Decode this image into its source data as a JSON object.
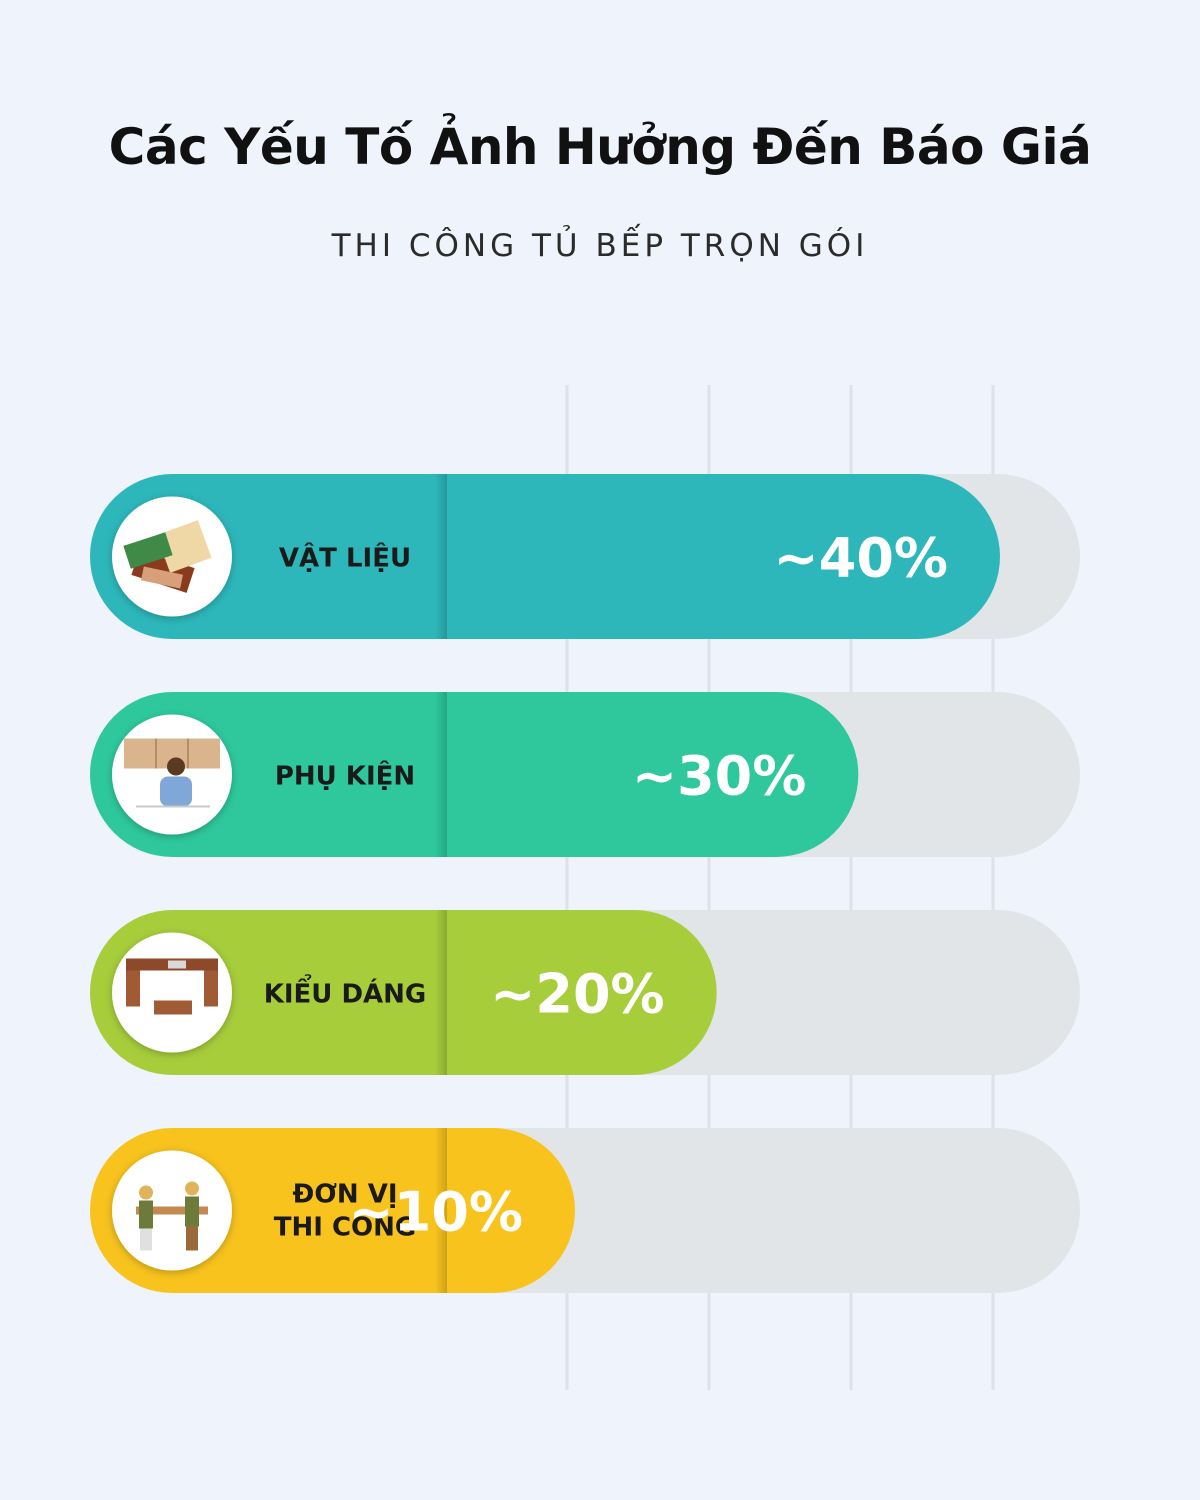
{
  "title": "Các Yếu Tố Ảnh Hưởng Đến Báo Giá",
  "subtitle": "THI CÔNG TỦ BẾP TRỌN GÓI",
  "chart_data": {
    "type": "bar",
    "orientation": "horizontal",
    "categories": [
      {
        "label_lines": [
          "VẬT LIỆU"
        ],
        "icon": "materials-swatches-icon",
        "color": "#2db7ba"
      },
      {
        "label_lines": [
          "PHỤ KIỆN"
        ],
        "icon": "woman-installing-cabinet-icon",
        "color": "#2ec89c"
      },
      {
        "label_lines": [
          "KIỂU DÁNG"
        ],
        "icon": "kitchen-layout-icon",
        "color": "#a7cd3b"
      },
      {
        "label_lines": [
          "ĐƠN VỊ",
          "THI CÔNG"
        ],
        "icon": "construction-workers-icon",
        "color": "#f8c31d"
      }
    ],
    "values": [
      40,
      30,
      20,
      10
    ],
    "value_labels": [
      "~40%",
      "~30%",
      "~20%",
      "~10%"
    ],
    "track_color": "#e1e5e8",
    "grid": true,
    "grid_color": "#dde1e8"
  }
}
